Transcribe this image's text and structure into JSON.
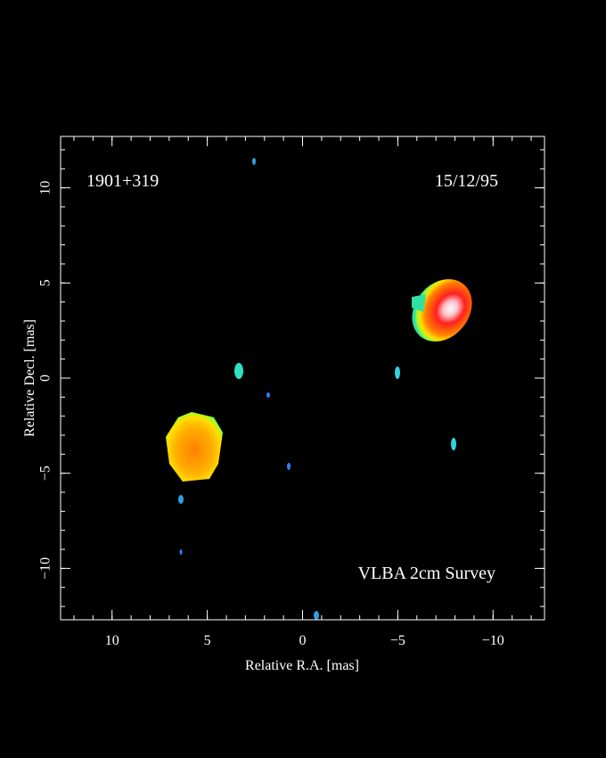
{
  "chart_data": {
    "type": "image",
    "source": "1901+319",
    "date": "15/12/95",
    "survey": "VLBA 2cm Survey",
    "xlabel": "Relative R.A. [mas]",
    "ylabel": "Relative Decl. [mas]",
    "xlim": [
      12.7,
      -12.7
    ],
    "ylim": [
      -12.7,
      12.7
    ],
    "xticks": [
      10,
      5,
      0,
      {
        "value": -5,
        "label": "−5"
      },
      {
        "value": -10,
        "label": "−10"
      }
    ],
    "yticks": [
      {
        "value": -10,
        "label": "−10"
      },
      {
        "value": -5,
        "label": "−5"
      },
      0,
      5,
      10
    ]
  }
}
